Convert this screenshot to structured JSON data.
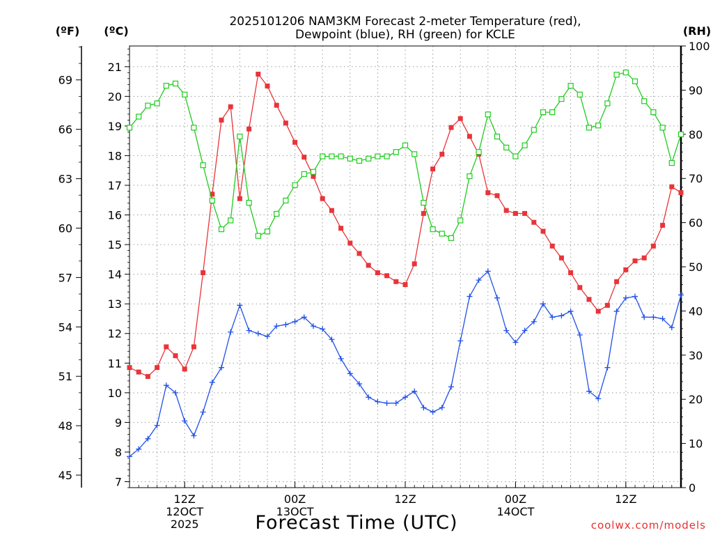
{
  "chart_data": {
    "type": "line",
    "title_line1": "2025101206 NAM3KM Forecast 2-meter Temperature (red),",
    "title_line2": "Dewpoint (blue), RH (green) for KCLE",
    "xlabel": "Forecast Time (UTC)",
    "credit": "coolwx.com/models",
    "units": {
      "fahrenheit": "(ºF)",
      "celsius": "(ºC)",
      "rh": "(RH)"
    },
    "x_hours": [
      0,
      1,
      2,
      3,
      4,
      5,
      6,
      7,
      8,
      9,
      10,
      11,
      12,
      13,
      14,
      15,
      16,
      17,
      18,
      19,
      20,
      21,
      22,
      23,
      24,
      25,
      26,
      27,
      28,
      29,
      30,
      31,
      32,
      33,
      34,
      35,
      36,
      37,
      38,
      39,
      40,
      41,
      42,
      43,
      44,
      45,
      46,
      47,
      48,
      49,
      50,
      51,
      52,
      53,
      54,
      55,
      56,
      57,
      58,
      59,
      60
    ],
    "xlim": [
      0,
      60
    ],
    "x_ticks": [
      {
        "hour": 6,
        "lines": [
          "12Z",
          "12OCT",
          "2025"
        ]
      },
      {
        "hour": 18,
        "lines": [
          "00Z",
          "13OCT"
        ]
      },
      {
        "hour": 30,
        "lines": [
          "12Z"
        ]
      },
      {
        "hour": 42,
        "lines": [
          "00Z",
          "14OCT"
        ]
      },
      {
        "hour": 54,
        "lines": [
          "12Z"
        ]
      }
    ],
    "celsius_axis": {
      "ylim": [
        6.8,
        21.7
      ],
      "ticks": [
        7,
        8,
        9,
        10,
        11,
        12,
        13,
        14,
        15,
        16,
        17,
        18,
        19,
        20,
        21
      ]
    },
    "fahrenheit_axis": {
      "ticks": [
        45,
        48,
        51,
        54,
        57,
        60,
        63,
        66,
        69
      ]
    },
    "rh_axis": {
      "ylim": [
        0,
        100
      ],
      "ticks": [
        0,
        10,
        20,
        30,
        40,
        50,
        60,
        70,
        80,
        90,
        100
      ]
    },
    "series": [
      {
        "name": "Temperature",
        "axis": "celsius",
        "color": "#e8343a",
        "marker": "filled-square",
        "values": [
          10.85,
          10.7,
          10.55,
          10.85,
          11.55,
          11.25,
          10.8,
          11.55,
          14.05,
          16.7,
          19.2,
          19.65,
          16.55,
          18.9,
          20.75,
          20.35,
          19.7,
          19.1,
          18.45,
          17.95,
          17.3,
          16.55,
          16.15,
          15.55,
          15.05,
          14.7,
          14.3,
          14.05,
          13.95,
          13.75,
          13.65,
          14.35,
          16.05,
          17.55,
          18.05,
          18.95,
          19.25,
          18.65,
          18.05,
          16.75,
          16.65,
          16.15,
          16.05,
          16.05,
          15.75,
          15.45,
          14.95,
          14.55,
          14.05,
          13.55,
          13.15,
          12.75,
          12.95,
          13.75,
          14.15,
          14.45,
          14.55,
          14.95,
          15.65,
          16.95,
          16.75
        ]
      },
      {
        "name": "Dewpoint",
        "axis": "celsius",
        "color": "#2050e8",
        "marker": "plus",
        "values": [
          7.85,
          8.1,
          8.45,
          8.9,
          10.25,
          10.0,
          9.05,
          8.55,
          9.35,
          10.35,
          10.85,
          12.05,
          12.95,
          12.1,
          12.0,
          11.9,
          12.25,
          12.3,
          12.4,
          12.55,
          12.25,
          12.15,
          11.8,
          11.15,
          10.65,
          10.3,
          9.85,
          9.7,
          9.65,
          9.65,
          9.85,
          10.05,
          9.5,
          9.35,
          9.5,
          10.2,
          11.75,
          13.25,
          13.8,
          14.1,
          13.2,
          12.1,
          11.7,
          12.1,
          12.4,
          13.0,
          12.55,
          12.6,
          12.75,
          11.95,
          10.05,
          9.8,
          10.85,
          12.75,
          13.2,
          13.25,
          12.55,
          12.55,
          12.5,
          12.2,
          13.3
        ]
      },
      {
        "name": "RH",
        "axis": "rh",
        "color": "#1ecc1e",
        "marker": "open-square",
        "values": [
          81.5,
          84.0,
          86.5,
          87.0,
          91.0,
          91.5,
          89.0,
          81.5,
          73.0,
          65.0,
          58.5,
          60.5,
          79.5,
          64.5,
          57.0,
          58.0,
          62.0,
          65.0,
          68.5,
          71.0,
          71.5,
          75.0,
          75.0,
          75.0,
          74.5,
          74.0,
          74.5,
          75.0,
          75.0,
          76.0,
          77.5,
          75.5,
          64.5,
          58.5,
          57.5,
          56.5,
          60.5,
          70.5,
          76.0,
          84.5,
          79.5,
          77.0,
          75.0,
          77.5,
          81.0,
          85.0,
          85.0,
          88.0,
          91.0,
          89.0,
          81.5,
          82.0,
          87.0,
          93.5,
          94.0,
          92.0,
          87.5,
          85.0,
          81.5,
          73.5,
          80.0
        ]
      }
    ]
  }
}
